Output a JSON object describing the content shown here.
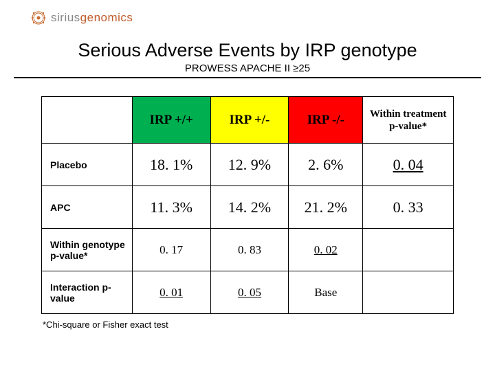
{
  "logo": {
    "word1": "sirius",
    "word2": "genomics",
    "color1": "#888888",
    "color2": "#bf5b2a"
  },
  "title": "Serious Adverse Events by IRP genotype",
  "subtitle": "PROWESS APACHE II ≥25",
  "table": {
    "header_bg": {
      "c1": "#00b050",
      "c2": "#ffff00",
      "c3": "#ff0000"
    },
    "headers": [
      "",
      "IRP +/+",
      "IRP +/-",
      "IRP -/-",
      "Within treatment p-value*"
    ],
    "rows": [
      {
        "label": "Placebo",
        "cells": [
          "18. 1%",
          "12. 9%",
          "2. 6%",
          "0. 04"
        ],
        "underline": [
          false,
          false,
          false,
          true
        ]
      },
      {
        "label": "APC",
        "cells": [
          "11. 3%",
          "14. 2%",
          "21. 2%",
          "0. 33"
        ],
        "underline": [
          false,
          false,
          false,
          false
        ]
      },
      {
        "label": "Within genotype p-value*",
        "cells": [
          "0. 17",
          "0. 83",
          "0. 02",
          ""
        ],
        "underline": [
          false,
          false,
          true,
          false
        ],
        "small": true
      },
      {
        "label": "Interaction p-value",
        "cells": [
          "0. 01",
          "0. 05",
          "Base",
          ""
        ],
        "underline": [
          true,
          true,
          false,
          false
        ],
        "small": true
      }
    ]
  },
  "footnote": "*Chi-square or Fisher exact test"
}
